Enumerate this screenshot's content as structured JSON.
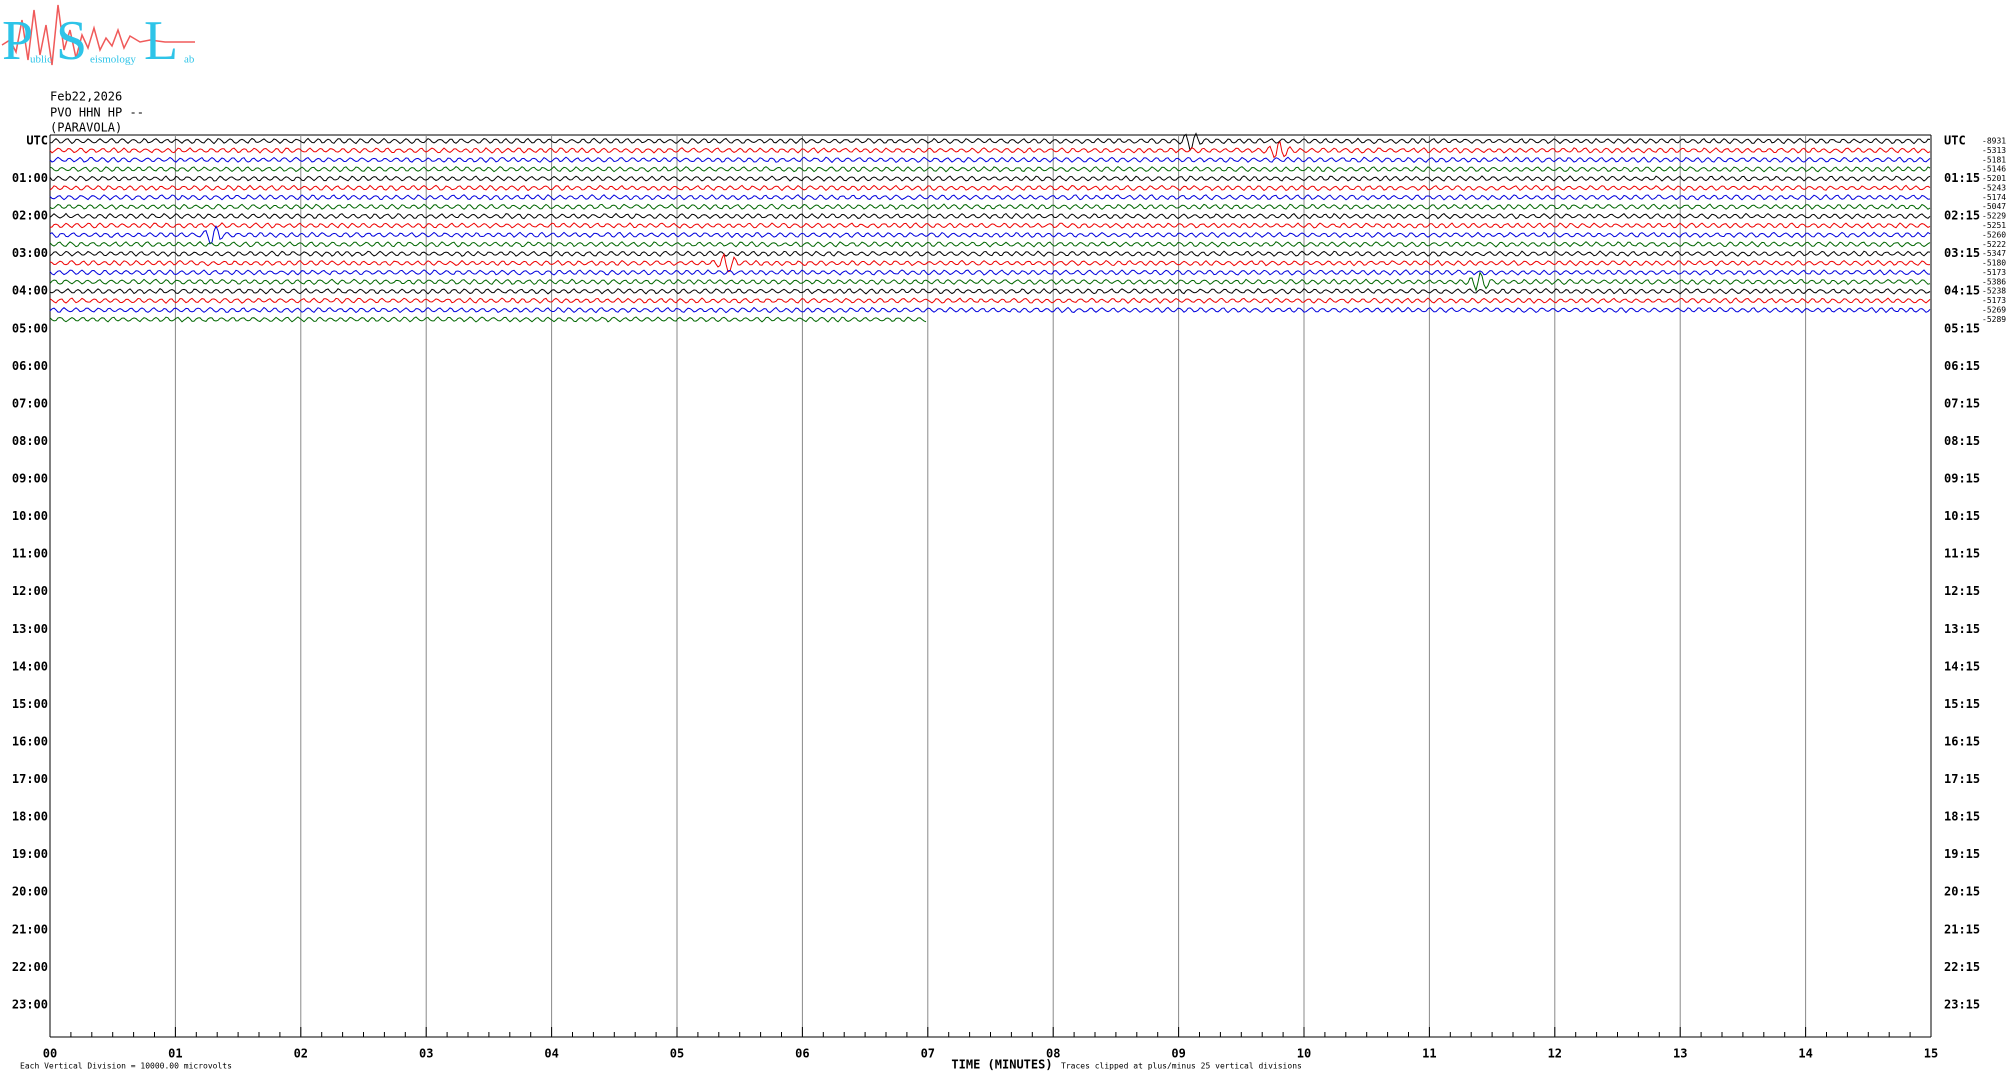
{
  "logo": {
    "letters": [
      "P",
      "S",
      "L"
    ],
    "words": [
      "ublic",
      "eismology",
      "ab"
    ]
  },
  "header": {
    "date": "Feb22,2026",
    "station": "PVO HHN HP --",
    "location": "(PARAVOLA)"
  },
  "left_labels": [
    "UTC",
    "01:00",
    "02:00",
    "03:00",
    "04:00",
    "05:00",
    "06:00",
    "07:00",
    "08:00",
    "09:00",
    "10:00",
    "11:00",
    "12:00",
    "13:00",
    "14:00",
    "15:00",
    "16:00",
    "17:00",
    "18:00",
    "19:00",
    "20:00",
    "21:00",
    "22:00",
    "23:00"
  ],
  "right_labels": [
    "UTC",
    "01:15",
    "02:15",
    "03:15",
    "04:15",
    "05:15",
    "06:15",
    "07:15",
    "08:15",
    "09:15",
    "10:15",
    "11:15",
    "12:15",
    "13:15",
    "14:15",
    "15:15",
    "16:15",
    "17:15",
    "18:15",
    "19:15",
    "20:15",
    "21:15",
    "22:15",
    "23:15"
  ],
  "offsets": [
    "-8931",
    "-5313",
    "-5181",
    "-5146",
    "-5201",
    "-5243",
    "-5174",
    "-5047",
    "-5229",
    "-5251",
    "-5260",
    "-5222",
    "-5347",
    "-5180",
    "-5173",
    "-5386",
    "-5238",
    "-5173",
    "-5269",
    "-5289"
  ],
  "x_labels": [
    "00",
    "01",
    "02",
    "03",
    "04",
    "05",
    "06",
    "07",
    "08",
    "09",
    "10",
    "11",
    "12",
    "13",
    "14",
    "15"
  ],
  "x_axis_title": "TIME (MINUTES)",
  "footer_left": "Each Vertical Division = 10000.00 microvolts",
  "footer_right": "Traces clipped at plus/minus 25 vertical divisions"
}
